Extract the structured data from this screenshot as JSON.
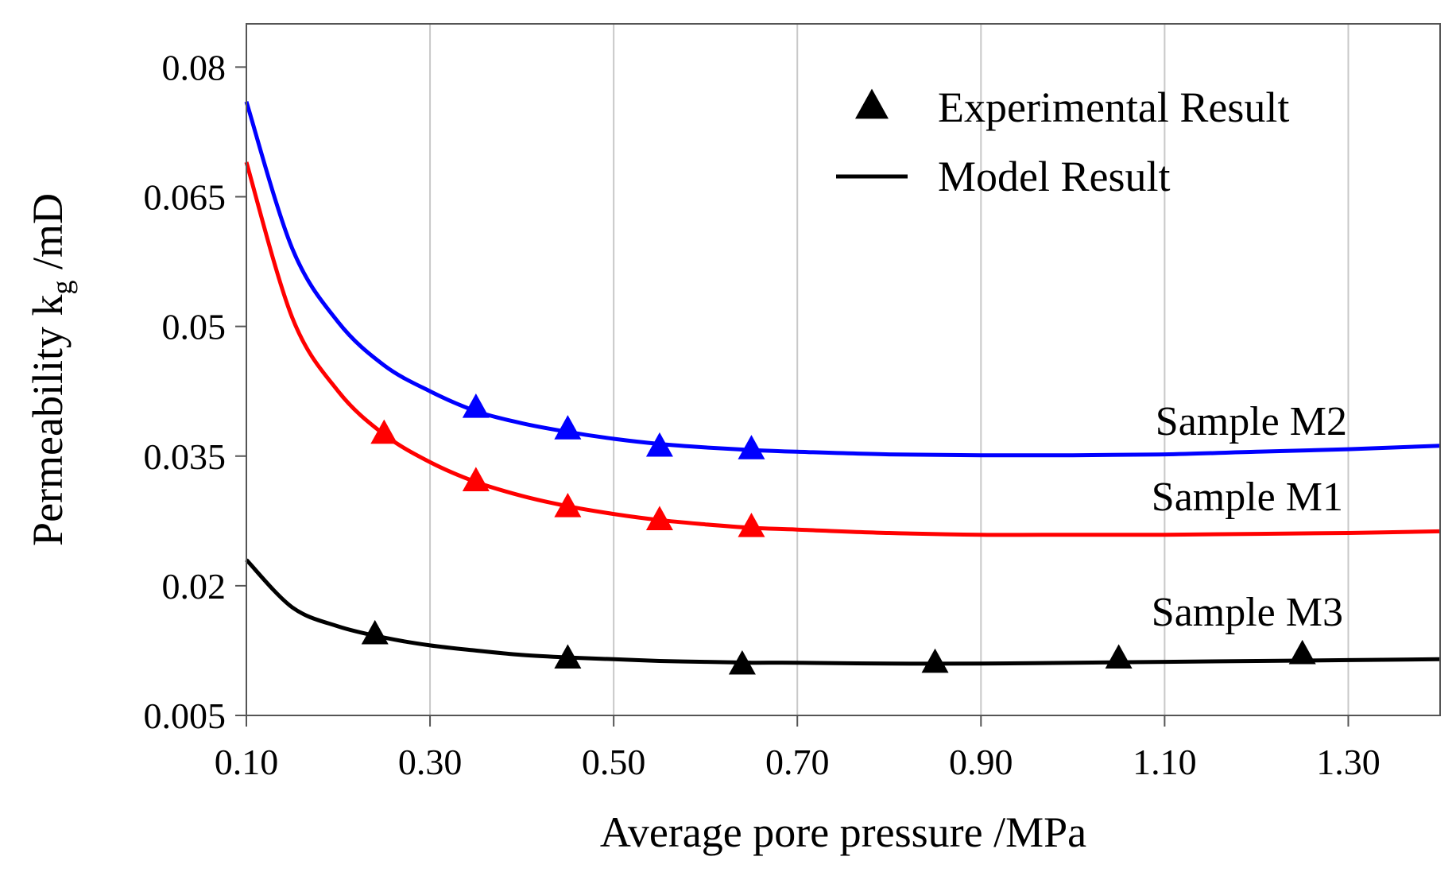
{
  "chart_data": {
    "type": "scatter",
    "title": "",
    "xlabel": "Average pore pressure /MPa",
    "ylabel": {
      "prefix": "Permeability k",
      "subscript": "g",
      "suffix": " /mD"
    },
    "xlim": [
      0.1,
      1.4
    ],
    "ylim": [
      0.005,
      0.085
    ],
    "x_ticks": [
      "0.10",
      "0.30",
      "0.50",
      "0.70",
      "0.90",
      "1.10",
      "1.30"
    ],
    "y_ticks": [
      "0.005",
      "0.02",
      "0.035",
      "0.05",
      "0.065",
      "0.08"
    ],
    "grid": "vertical",
    "legend": {
      "placement": "top-right",
      "items": [
        {
          "label": "Experimental Result",
          "marker": "triangle"
        },
        {
          "label": "Model Result",
          "marker": "line"
        }
      ]
    },
    "series": [
      {
        "name": "Sample M2",
        "color": "#0000ff",
        "experimental": {
          "x": [
            0.35,
            0.45,
            0.55,
            0.65
          ],
          "y": [
            0.0405,
            0.038,
            0.036,
            0.0357
          ]
        },
        "model": {
          "x": [
            0.1,
            0.15,
            0.2,
            0.25,
            0.3,
            0.35,
            0.4,
            0.45,
            0.5,
            0.55,
            0.6,
            0.65,
            0.7,
            0.8,
            0.9,
            1.0,
            1.1,
            1.2,
            1.3,
            1.4
          ],
          "y": [
            0.076,
            0.059,
            0.0505,
            0.0455,
            0.0425,
            0.0402,
            0.0388,
            0.0378,
            0.037,
            0.0364,
            0.036,
            0.0357,
            0.0355,
            0.0352,
            0.0351,
            0.0351,
            0.0352,
            0.0355,
            0.0358,
            0.0362
          ]
        }
      },
      {
        "name": "Sample M1",
        "color": "#ff0000",
        "experimental": {
          "x": [
            0.25,
            0.35,
            0.45,
            0.55,
            0.65
          ],
          "y": [
            0.0375,
            0.032,
            0.029,
            0.0275,
            0.0267
          ]
        },
        "model": {
          "x": [
            0.1,
            0.15,
            0.2,
            0.25,
            0.3,
            0.35,
            0.4,
            0.45,
            0.5,
            0.55,
            0.6,
            0.65,
            0.7,
            0.8,
            0.9,
            1.0,
            1.1,
            1.2,
            1.3,
            1.4
          ],
          "y": [
            0.069,
            0.051,
            0.0425,
            0.0375,
            0.0343,
            0.032,
            0.0304,
            0.0292,
            0.0283,
            0.0276,
            0.0271,
            0.0267,
            0.0265,
            0.0261,
            0.0259,
            0.0259,
            0.0259,
            0.026,
            0.0261,
            0.0263
          ]
        }
      },
      {
        "name": "Sample M3",
        "color": "#000000",
        "experimental": {
          "x": [
            0.24,
            0.45,
            0.64,
            0.85,
            1.05,
            1.25
          ],
          "y": [
            0.0143,
            0.0115,
            0.0108,
            0.011,
            0.0115,
            0.012
          ]
        },
        "model": {
          "x": [
            0.1,
            0.15,
            0.2,
            0.25,
            0.3,
            0.35,
            0.4,
            0.45,
            0.5,
            0.55,
            0.6,
            0.65,
            0.7,
            0.8,
            0.9,
            1.0,
            1.1,
            1.2,
            1.3,
            1.4
          ],
          "y": [
            0.023,
            0.0175,
            0.0153,
            0.014,
            0.0131,
            0.0125,
            0.012,
            0.0117,
            0.0115,
            0.0113,
            0.0112,
            0.0111,
            0.0111,
            0.011,
            0.011,
            0.0111,
            0.0112,
            0.0113,
            0.0114,
            0.0115
          ]
        }
      }
    ]
  }
}
